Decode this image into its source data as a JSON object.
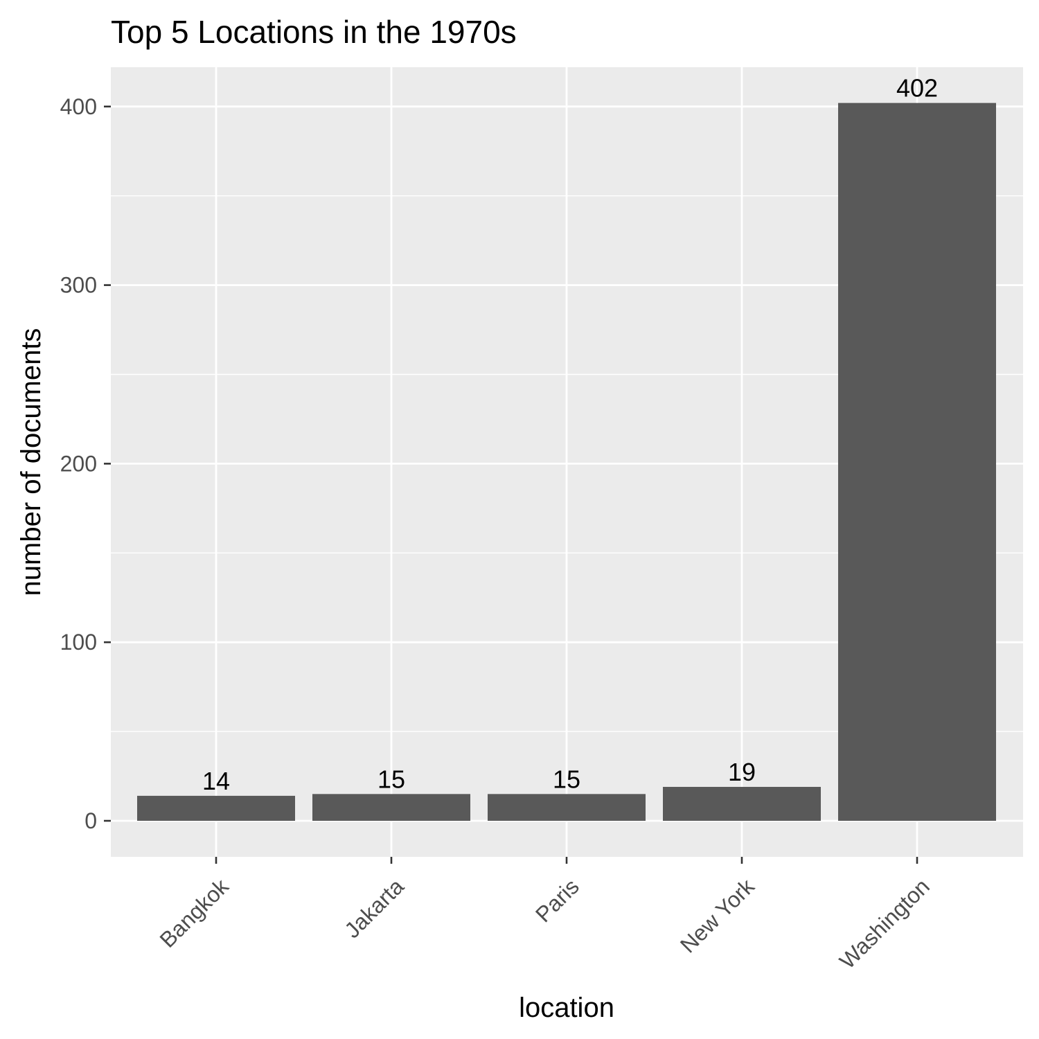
{
  "chart_data": {
    "type": "bar",
    "title": "Top 5 Locations in the 1970s",
    "xlabel": "location",
    "ylabel": "number of documents",
    "categories": [
      "Bangkok",
      "Jakarta",
      "Paris",
      "New York",
      "Washington"
    ],
    "values": [
      14,
      15,
      15,
      19,
      402
    ],
    "data_labels": [
      "14",
      "15",
      "15",
      "19",
      "402"
    ],
    "ylim": [
      0,
      420
    ],
    "y_ticks": [
      0,
      100,
      200,
      300,
      400
    ],
    "y_minor_ticks": [
      50,
      150,
      250,
      350
    ],
    "grid": true,
    "legend": "none",
    "colors": {
      "bar": "#595959",
      "panel": "#ebebeb",
      "grid": "#ffffff",
      "tick_text": "#4d4d4d",
      "tick_mark": "#333333"
    }
  }
}
